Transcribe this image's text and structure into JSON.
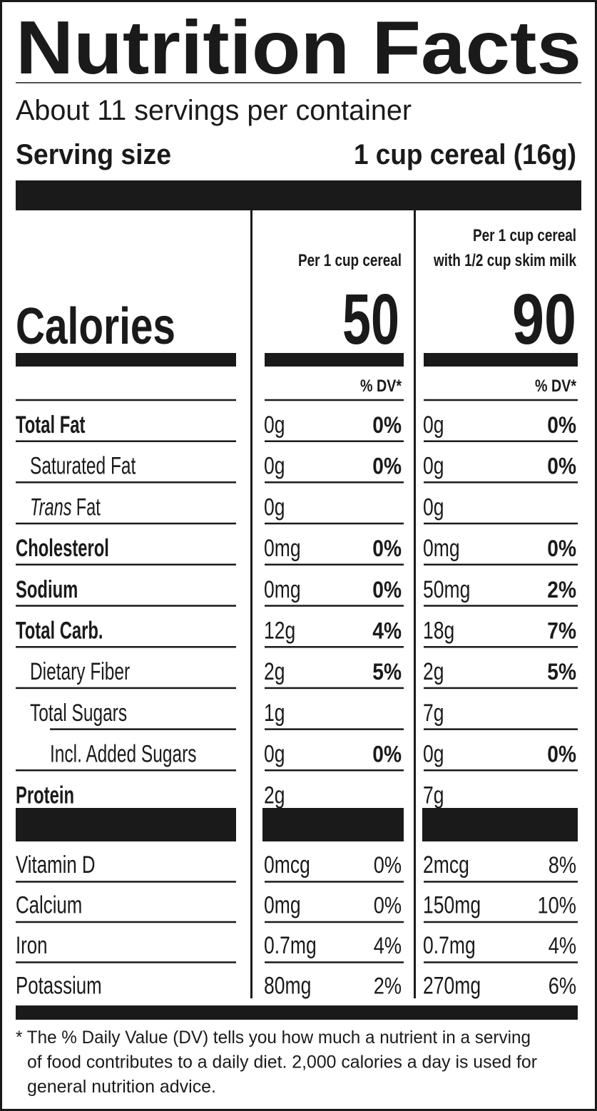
{
  "title": "Nutrition Facts",
  "servings": "About 11 servings per container",
  "serving_size": {
    "label": "Serving size",
    "value": "1 cup cereal (16g)"
  },
  "calories_label": "Calories",
  "dv_header": "% DV*",
  "columns": [
    {
      "heading": [
        "Per 1 cup cereal"
      ],
      "calories": 50
    },
    {
      "heading": [
        "Per 1 cup cereal",
        "with 1/2 cup skim milk"
      ],
      "calories": 90
    }
  ],
  "nutrients": [
    {
      "name": "Total Fat",
      "bold": true,
      "indent": 0,
      "values": [
        [
          "0g",
          "0%"
        ],
        [
          "0g",
          "0%"
        ]
      ]
    },
    {
      "name": "Saturated Fat",
      "bold": false,
      "indent": 1,
      "values": [
        [
          "0g",
          "0%"
        ],
        [
          "0g",
          "0%"
        ]
      ]
    },
    {
      "name_italic": "Trans",
      "name": "Fat",
      "bold": false,
      "indent": 1,
      "values": [
        [
          "0g"
        ],
        [
          "0g"
        ]
      ]
    },
    {
      "name": "Cholesterol",
      "bold": true,
      "indent": 0,
      "values": [
        [
          "0mg",
          "0%"
        ],
        [
          "0mg",
          "0%"
        ]
      ]
    },
    {
      "name": "Sodium",
      "bold": true,
      "indent": 0,
      "values": [
        [
          "0mg",
          "0%"
        ],
        [
          "50mg",
          "2%"
        ]
      ]
    },
    {
      "name": "Total Carb.",
      "bold": true,
      "indent": 0,
      "values": [
        [
          "12g",
          "4%"
        ],
        [
          "18g",
          "7%"
        ]
      ]
    },
    {
      "name": "Dietary Fiber",
      "bold": false,
      "indent": 1,
      "values": [
        [
          "2g",
          "5%"
        ],
        [
          "2g",
          "5%"
        ]
      ]
    },
    {
      "name": "Total Sugars",
      "bold": false,
      "indent": 1,
      "values": [
        [
          "1g"
        ],
        [
          "7g"
        ]
      ]
    },
    {
      "name": "Incl. Added Sugars",
      "bold": false,
      "indent": 2,
      "values": [
        [
          "0g",
          "0%"
        ],
        [
          "0g",
          "0%"
        ]
      ]
    },
    {
      "name": "Protein",
      "bold": true,
      "indent": 0,
      "values": [
        [
          "2g"
        ],
        [
          "7g"
        ]
      ]
    }
  ],
  "vitamins": [
    {
      "name": "Vitamin D",
      "values": [
        [
          "0mcg",
          "0%"
        ],
        [
          "2mcg",
          "8%"
        ]
      ]
    },
    {
      "name": "Calcium",
      "values": [
        [
          "0mg",
          "0%"
        ],
        [
          "150mg",
          "10%"
        ]
      ]
    },
    {
      "name": "Iron",
      "values": [
        [
          "0.7mg",
          "4%"
        ],
        [
          "0.7mg",
          "4%"
        ]
      ]
    },
    {
      "name": "Potassium",
      "values": [
        [
          "80mg",
          "2%"
        ],
        [
          "270mg",
          "6%"
        ]
      ]
    }
  ],
  "footnote": [
    "* The % Daily Value (DV) tells you how much a nutrient in a serving",
    "of food contributes to a daily diet. 2,000 calories a day is used for",
    "general nutrition advice."
  ]
}
